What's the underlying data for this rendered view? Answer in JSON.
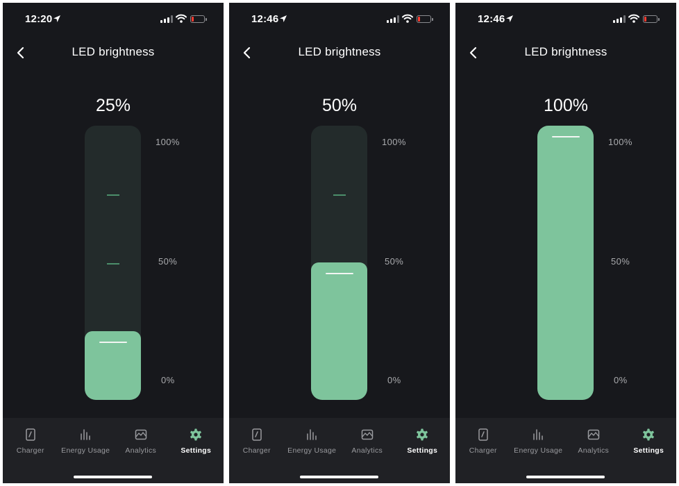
{
  "colors": {
    "background": "#17181c",
    "track": "#232b2b",
    "accent": "#7ec49c",
    "tab_bar": "#202125",
    "battery_low": "#ff3b30"
  },
  "screens": [
    {
      "status": {
        "time": "12:20"
      },
      "header": {
        "title": "LED brightness"
      },
      "brightness": {
        "label": "25%",
        "value": 25
      },
      "scale": {
        "top": "100%",
        "mid": "50%",
        "bottom": "0%"
      },
      "tabs": [
        {
          "label": "Charger",
          "icon": "charger-icon"
        },
        {
          "label": "Energy Usage",
          "icon": "energy-usage-icon"
        },
        {
          "label": "Analytics",
          "icon": "analytics-icon"
        },
        {
          "label": "Settings",
          "icon": "settings-gear-icon",
          "active": true
        }
      ]
    },
    {
      "status": {
        "time": "12:46"
      },
      "header": {
        "title": "LED brightness"
      },
      "brightness": {
        "label": "50%",
        "value": 50
      },
      "scale": {
        "top": "100%",
        "mid": "50%",
        "bottom": "0%"
      },
      "tabs": [
        {
          "label": "Charger",
          "icon": "charger-icon"
        },
        {
          "label": "Energy Usage",
          "icon": "energy-usage-icon"
        },
        {
          "label": "Analytics",
          "icon": "analytics-icon"
        },
        {
          "label": "Settings",
          "icon": "settings-gear-icon",
          "active": true
        }
      ]
    },
    {
      "status": {
        "time": "12:46"
      },
      "header": {
        "title": "LED brightness"
      },
      "brightness": {
        "label": "100%",
        "value": 100
      },
      "scale": {
        "top": "100%",
        "mid": "50%",
        "bottom": "0%"
      },
      "tabs": [
        {
          "label": "Charger",
          "icon": "charger-icon"
        },
        {
          "label": "Energy Usage",
          "icon": "energy-usage-icon"
        },
        {
          "label": "Analytics",
          "icon": "analytics-icon"
        },
        {
          "label": "Settings",
          "icon": "settings-gear-icon",
          "active": true
        }
      ]
    }
  ]
}
